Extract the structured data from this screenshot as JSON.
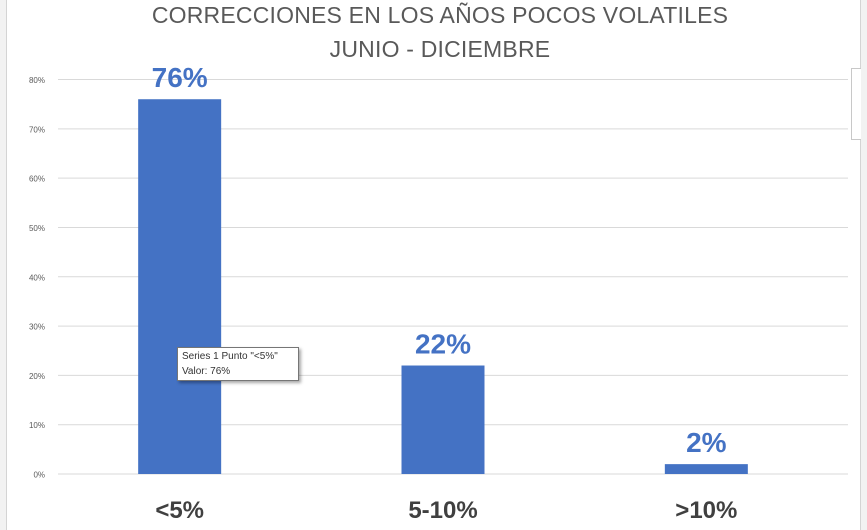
{
  "chart_data": {
    "type": "bar",
    "title": "CORRECCIONES EN LOS AÑOS POCOS VOLATILES",
    "subtitle": "JUNIO - DICIEMBRE",
    "categories": [
      "<5%",
      "5-10%",
      ">10%"
    ],
    "series": [
      {
        "values": [
          76,
          22,
          2
        ]
      }
    ],
    "data_labels": [
      "76%",
      "22%",
      "2%"
    ],
    "yticks": [
      "0%",
      "10%",
      "20%",
      "30%",
      "40%",
      "50%",
      "60%",
      "70%",
      "80%"
    ],
    "ylim": [
      0,
      80
    ],
    "grid": true,
    "legend": "none",
    "bar_color": "#4472C4",
    "label_color": "#4472C4"
  },
  "tooltip": {
    "line1": "Series 1 Punto \"<5%\"",
    "line2": "Valor: 76%"
  }
}
